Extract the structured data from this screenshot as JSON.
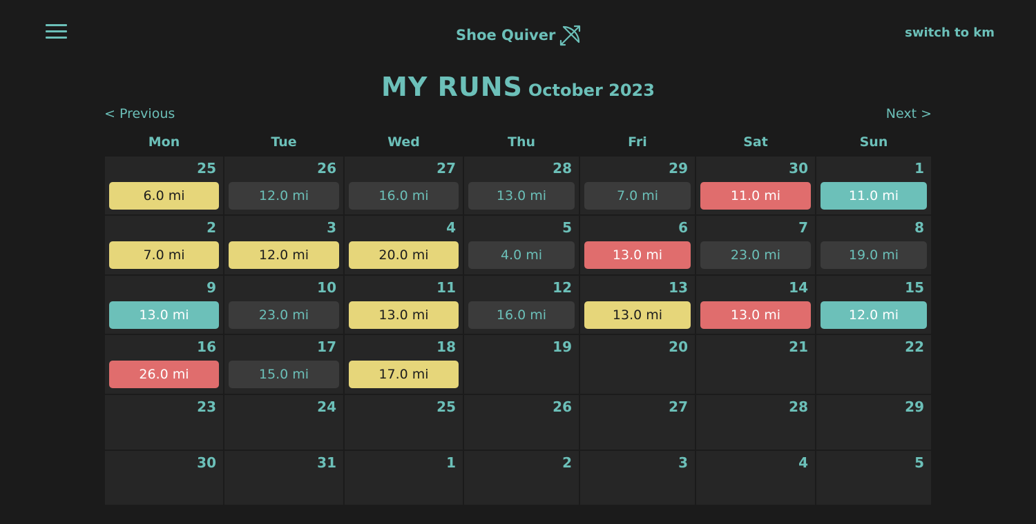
{
  "header": {
    "brand_name": "Shoe Quiver",
    "brand_icon": "bow-and-arrow-icon",
    "unit_toggle_label": "switch to km",
    "menu_icon": "hamburger-menu-icon"
  },
  "title": {
    "main": "MY RUNS",
    "month": "October 2023"
  },
  "nav": {
    "previous_label": "< Previous",
    "next_label": "Next >"
  },
  "colors": {
    "background": "#1b1b1b",
    "cell": "#262626",
    "accent": "#6cc0b9",
    "yellow": "#e6d67a",
    "gray": "#3b3b3b",
    "red": "#e06d6d",
    "teal": "#6cc0b9"
  },
  "weekdays": [
    "Mon",
    "Tue",
    "Wed",
    "Thu",
    "Fri",
    "Sat",
    "Sun"
  ],
  "weeks": [
    [
      {
        "day": "25",
        "run": "6.0 mi",
        "color": "yellow"
      },
      {
        "day": "26",
        "run": "12.0 mi",
        "color": "gray"
      },
      {
        "day": "27",
        "run": "16.0 mi",
        "color": "gray"
      },
      {
        "day": "28",
        "run": "13.0 mi",
        "color": "gray"
      },
      {
        "day": "29",
        "run": "7.0 mi",
        "color": "gray"
      },
      {
        "day": "30",
        "run": "11.0 mi",
        "color": "red"
      },
      {
        "day": "1",
        "run": "11.0 mi",
        "color": "teal"
      }
    ],
    [
      {
        "day": "2",
        "run": "7.0 mi",
        "color": "yellow"
      },
      {
        "day": "3",
        "run": "12.0 mi",
        "color": "yellow"
      },
      {
        "day": "4",
        "run": "20.0 mi",
        "color": "yellow"
      },
      {
        "day": "5",
        "run": "4.0 mi",
        "color": "gray"
      },
      {
        "day": "6",
        "run": "13.0 mi",
        "color": "red"
      },
      {
        "day": "7",
        "run": "23.0 mi",
        "color": "gray"
      },
      {
        "day": "8",
        "run": "19.0 mi",
        "color": "gray"
      }
    ],
    [
      {
        "day": "9",
        "run": "13.0 mi",
        "color": "teal"
      },
      {
        "day": "10",
        "run": "23.0 mi",
        "color": "gray"
      },
      {
        "day": "11",
        "run": "13.0 mi",
        "color": "yellow"
      },
      {
        "day": "12",
        "run": "16.0 mi",
        "color": "gray"
      },
      {
        "day": "13",
        "run": "13.0 mi",
        "color": "yellow"
      },
      {
        "day": "14",
        "run": "13.0 mi",
        "color": "red"
      },
      {
        "day": "15",
        "run": "12.0 mi",
        "color": "teal"
      }
    ],
    [
      {
        "day": "16",
        "run": "26.0 mi",
        "color": "red"
      },
      {
        "day": "17",
        "run": "15.0 mi",
        "color": "gray"
      },
      {
        "day": "18",
        "run": "17.0 mi",
        "color": "yellow"
      },
      {
        "day": "19"
      },
      {
        "day": "20"
      },
      {
        "day": "21"
      },
      {
        "day": "22"
      }
    ],
    [
      {
        "day": "23"
      },
      {
        "day": "24"
      },
      {
        "day": "25"
      },
      {
        "day": "26"
      },
      {
        "day": "27"
      },
      {
        "day": "28"
      },
      {
        "day": "29"
      }
    ],
    [
      {
        "day": "30"
      },
      {
        "day": "31"
      },
      {
        "day": "1"
      },
      {
        "day": "2"
      },
      {
        "day": "3"
      },
      {
        "day": "4"
      },
      {
        "day": "5"
      }
    ]
  ]
}
